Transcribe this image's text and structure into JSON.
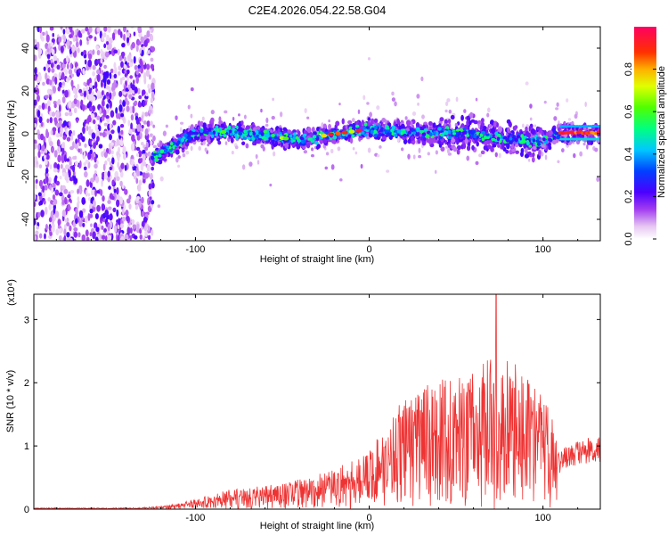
{
  "title": "C2E4.2026.054.22.58.G04",
  "colors": {
    "snr_line": "#ee3333",
    "frame": "#000000",
    "background": "#ffffff"
  },
  "chart_data": [
    {
      "type": "heatmap",
      "name": "spectrogram",
      "xlabel": "Height of straight line (km)",
      "ylabel": "Frequency (Hz)",
      "xlim": [
        -193,
        133
      ],
      "ylim": [
        -50,
        50
      ],
      "xticks": [
        -100,
        0,
        100
      ],
      "xtick_labels": [
        "-100",
        "0",
        "100"
      ],
      "yticks": [
        -40,
        -20,
        0,
        20,
        40
      ],
      "ytick_labels": [
        "-40",
        "-20",
        "0",
        "20",
        "40"
      ],
      "colorbar": {
        "label": "Normalized spectral amplitude",
        "range": [
          0.0,
          1.0
        ],
        "ticks": [
          0.0,
          0.2,
          0.4,
          0.6,
          0.8
        ],
        "tick_labels": [
          "0.0",
          "0.2",
          "0.4",
          "0.6",
          "0.8"
        ]
      },
      "band_center_hz": [
        [
          -193,
          0
        ],
        [
          -130,
          -13
        ],
        [
          -120,
          -9
        ],
        [
          -100,
          0
        ],
        [
          -80,
          1
        ],
        [
          -60,
          -1
        ],
        [
          -40,
          -3
        ],
        [
          -20,
          0
        ],
        [
          0,
          2
        ],
        [
          20,
          1
        ],
        [
          40,
          0
        ],
        [
          60,
          0
        ],
        [
          80,
          -2
        ],
        [
          100,
          -4
        ],
        [
          110,
          0
        ],
        [
          133,
          0
        ]
      ],
      "noise_region_km": [
        -193,
        -128
      ]
    },
    {
      "type": "line",
      "name": "snr",
      "xlabel": "Height of straight line (km)",
      "ylabel": "SNR (10 * v/v)",
      "y_multiplier_label": "(x10⁴)",
      "xlim": [
        -193,
        133
      ],
      "ylim": [
        0,
        3.4
      ],
      "xticks": [
        -100,
        0,
        100
      ],
      "xtick_labels": [
        "-100",
        "0",
        "100"
      ],
      "yticks": [
        0,
        1,
        2,
        3
      ],
      "ytick_labels": [
        "0",
        "1",
        "2",
        "3"
      ],
      "envelope": [
        [
          -193,
          0.02
        ],
        [
          -140,
          0.02
        ],
        [
          -120,
          0.04
        ],
        [
          -100,
          0.15
        ],
        [
          -80,
          0.3
        ],
        [
          -60,
          0.35
        ],
        [
          -40,
          0.45
        ],
        [
          -20,
          0.6
        ],
        [
          0,
          0.9
        ],
        [
          20,
          1.7
        ],
        [
          40,
          1.95
        ],
        [
          60,
          2.05
        ],
        [
          70,
          2.3
        ],
        [
          80,
          2.25
        ],
        [
          90,
          2.1
        ],
        [
          100,
          1.75
        ],
        [
          108,
          1.2
        ],
        [
          110,
          0.85
        ],
        [
          120,
          0.9
        ],
        [
          133,
          1.0
        ]
      ],
      "peak": {
        "x": 73,
        "y": 3.4
      }
    }
  ]
}
